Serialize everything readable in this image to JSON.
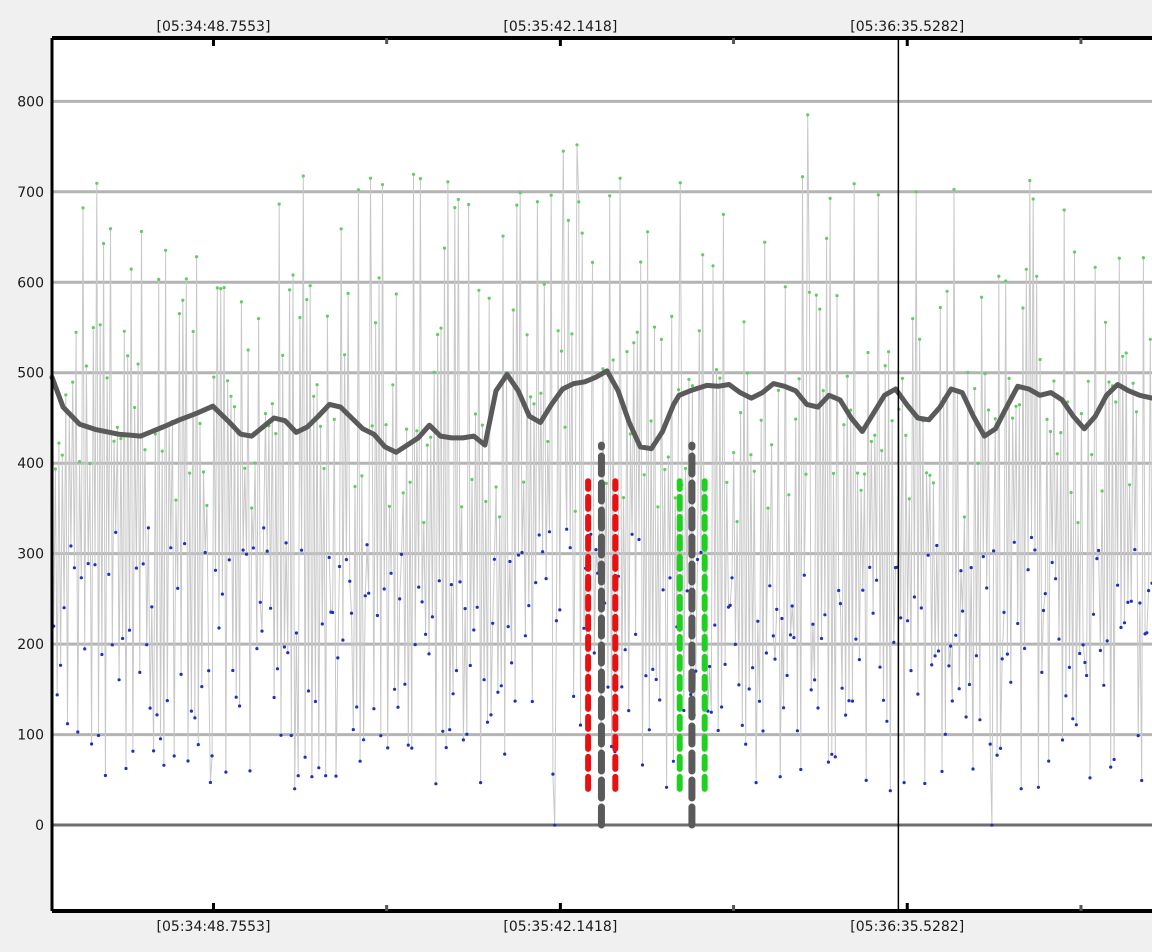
{
  "chart_data": {
    "type": "line",
    "title": "",
    "xlabel": "",
    "ylabel": "",
    "x_range_seconds": [
      0,
      198.2
    ],
    "ylim": [
      -95,
      870
    ],
    "y_ticks": [
      0,
      100,
      200,
      300,
      400,
      500,
      600,
      700,
      800
    ],
    "x_ticks": [
      {
        "label": "[05:34:48.7553]",
        "seconds": 29.1
      },
      {
        "label": "[05:35:42.1418]",
        "seconds": 91.6
      },
      {
        "label": "[05:36:35.5282]",
        "seconds": 154.1
      }
    ],
    "minor_x_ticks_seconds": [
      60.3,
      122.8,
      185.4
    ],
    "cursor_seconds": 152.5,
    "grid": true,
    "legend": "none",
    "colors": {
      "raw_line": "#c8c8c8",
      "upper_points": "#5fcf5f",
      "lower_points": "#1f2fbf",
      "smoothed": "#5a5a5a",
      "marker_red": "#e81010",
      "marker_green": "#20d020",
      "marker_gray": "#5a5a5a"
    },
    "smoothed_series": {
      "x": [
        0,
        2,
        5,
        8,
        12,
        16,
        18,
        20,
        23,
        26,
        29,
        32,
        34,
        36,
        38,
        40,
        42,
        44,
        46,
        48,
        50,
        52,
        54,
        56,
        58,
        60,
        62,
        64,
        66,
        68,
        70,
        72,
        74,
        76,
        78,
        80,
        82,
        84,
        86,
        88,
        90,
        92,
        94,
        96,
        98,
        100,
        102,
        104,
        106,
        108,
        110,
        112,
        113,
        115,
        118,
        120,
        122,
        124,
        126,
        128,
        130,
        132,
        134,
        136,
        138,
        140,
        142,
        144,
        146,
        148,
        150,
        152,
        154,
        156,
        158,
        160,
        162,
        164,
        166,
        168,
        170,
        172,
        174,
        176,
        178,
        180,
        182,
        184,
        186,
        188,
        190,
        192,
        194,
        196,
        198.2
      ],
      "y": [
        495,
        462,
        443,
        437,
        432,
        430,
        435,
        440,
        448,
        455,
        463,
        445,
        432,
        430,
        440,
        450,
        447,
        434,
        440,
        452,
        465,
        462,
        450,
        438,
        432,
        418,
        412,
        420,
        428,
        442,
        430,
        428,
        428,
        430,
        420,
        480,
        498,
        480,
        452,
        445,
        465,
        482,
        488,
        490,
        495,
        502,
        480,
        445,
        418,
        416,
        435,
        465,
        475,
        480,
        486,
        485,
        487,
        478,
        472,
        478,
        488,
        485,
        480,
        465,
        462,
        475,
        470,
        450,
        435,
        455,
        475,
        482,
        465,
        450,
        448,
        462,
        482,
        478,
        452,
        430,
        438,
        462,
        485,
        482,
        475,
        478,
        470,
        452,
        438,
        452,
        475,
        487,
        480,
        475,
        472
      ]
    },
    "raw_series": {
      "count": 640,
      "upper_band": [
        170,
        720
      ],
      "lower_band": [
        40,
        330
      ],
      "spikes": [
        {
          "x": 92.0,
          "y": 745
        },
        {
          "x": 94.6,
          "y": 752
        },
        {
          "x": 102.3,
          "y": 715
        },
        {
          "x": 113.2,
          "y": 710
        },
        {
          "x": 136.1,
          "y": 785
        },
        {
          "x": 57.5,
          "y": 715
        },
        {
          "x": 59.5,
          "y": 708
        },
        {
          "x": 176.8,
          "y": 692
        },
        {
          "x": 155.8,
          "y": 700
        }
      ],
      "dips": [
        {
          "x": 90.5,
          "y": 0
        },
        {
          "x": 169.3,
          "y": 0
        },
        {
          "x": 151.0,
          "y": 38
        },
        {
          "x": 28.5,
          "y": 47
        }
      ]
    },
    "vertical_markers": [
      {
        "color": "red",
        "seconds": 96.6,
        "y": [
          40,
          380
        ]
      },
      {
        "color": "gray",
        "seconds": 99.0,
        "y": [
          0,
          420
        ]
      },
      {
        "color": "red",
        "seconds": 101.5,
        "y": [
          40,
          380
        ]
      },
      {
        "color": "green",
        "seconds": 113.1,
        "y": [
          40,
          380
        ]
      },
      {
        "color": "gray",
        "seconds": 115.3,
        "y": [
          0,
          420
        ]
      },
      {
        "color": "green",
        "seconds": 117.6,
        "y": [
          40,
          380
        ]
      }
    ]
  }
}
